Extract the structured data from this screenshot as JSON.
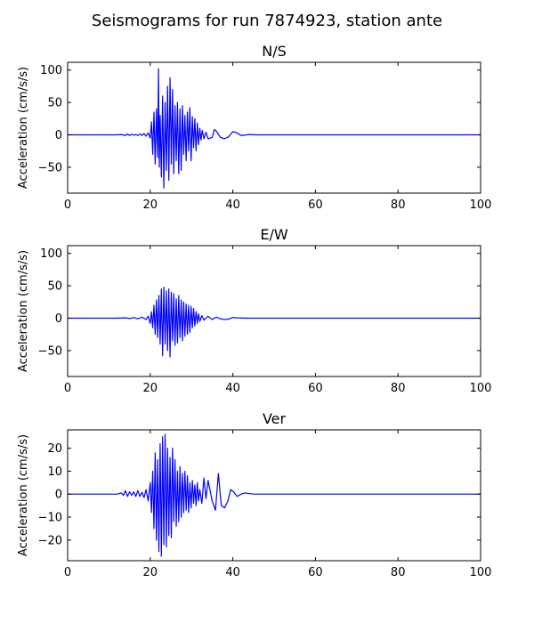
{
  "figure": {
    "suptitle": "Seismograms for run 7874923, station ante"
  },
  "chart_data": [
    {
      "type": "line",
      "title": "N/S",
      "xlabel": "",
      "ylabel": "Acceleration (cm/s/s)",
      "xlim": [
        0,
        100
      ],
      "ylim": [
        -90,
        112
      ],
      "xticks": [
        0,
        20,
        40,
        60,
        80,
        100
      ],
      "yticks": [
        -50,
        0,
        50,
        100
      ],
      "grid": false,
      "line_color": "#0000ff",
      "series": [
        {
          "x": [
            0,
            10,
            12,
            13,
            14,
            14.5,
            15,
            15.5,
            16,
            16.5,
            17,
            17.5,
            18,
            18.5,
            19,
            19.5,
            20,
            20.3,
            20.6,
            20.9,
            21.2,
            21.5,
            21.8,
            22.0,
            22.2,
            22.4,
            22.7,
            23.0,
            23.3,
            23.6,
            23.9,
            24.2,
            24.5,
            24.8,
            25.1,
            25.4,
            25.7,
            26.0,
            26.3,
            26.6,
            26.9,
            27.2,
            27.5,
            27.8,
            28.1,
            28.4,
            28.7,
            29.0,
            29.3,
            29.6,
            29.9,
            30.2,
            30.5,
            30.8,
            31.1,
            31.4,
            31.7,
            32.0,
            32.3,
            32.6,
            33.0,
            33.5,
            34.0,
            35.0,
            35.5,
            36.0,
            37.0,
            38.0,
            39.0,
            40.0,
            41.0,
            42.0,
            44.0,
            46.0,
            100
          ],
          "y": [
            0,
            0,
            0,
            0.5,
            -1,
            1.5,
            -1,
            1,
            -0.5,
            0.5,
            -1,
            1.5,
            -1,
            2,
            -2,
            3,
            -5,
            20,
            -30,
            35,
            -45,
            40,
            -35,
            102,
            -50,
            30,
            -65,
            60,
            -82,
            50,
            -55,
            75,
            -70,
            88,
            -45,
            70,
            -60,
            45,
            -40,
            50,
            -60,
            40,
            -55,
            45,
            -30,
            30,
            -40,
            35,
            -25,
            42,
            -40,
            28,
            -20,
            25,
            -25,
            18,
            -15,
            10,
            -8,
            7,
            -6,
            4,
            -6,
            -4,
            8,
            6,
            -4,
            -6,
            -3,
            5,
            3,
            -1,
            0.5,
            0,
            0
          ]
        }
      ]
    },
    {
      "type": "line",
      "title": "E/W",
      "xlabel": "",
      "ylabel": "Acceleration (cm/s/s)",
      "xlim": [
        0,
        100
      ],
      "ylim": [
        -90,
        112
      ],
      "xticks": [
        0,
        20,
        40,
        60,
        80,
        100
      ],
      "yticks": [
        -50,
        0,
        50,
        100
      ],
      "grid": false,
      "line_color": "#0000ff",
      "series": [
        {
          "x": [
            0,
            12,
            14,
            15,
            16,
            17,
            18,
            19,
            19.5,
            20,
            20.3,
            20.6,
            20.9,
            21.2,
            21.5,
            21.8,
            22.1,
            22.4,
            22.7,
            23.0,
            23.3,
            23.6,
            23.9,
            24.2,
            24.5,
            24.8,
            25.1,
            25.4,
            25.7,
            26.0,
            26.3,
            26.6,
            26.9,
            27.2,
            27.5,
            27.8,
            28.1,
            28.4,
            28.7,
            29.0,
            29.3,
            29.6,
            29.9,
            30.2,
            30.5,
            30.8,
            31.1,
            31.4,
            31.7,
            32.0,
            32.5,
            33.0,
            34.0,
            35.0,
            36.0,
            37.0,
            38.0,
            39.0,
            40.0,
            41.0,
            43.0,
            100
          ],
          "y": [
            0,
            0,
            0.5,
            -0.5,
            1,
            -1,
            1.5,
            -2,
            3,
            -8,
            10,
            -15,
            20,
            -25,
            28,
            -30,
            35,
            -40,
            45,
            -58,
            48,
            -40,
            42,
            -50,
            45,
            -60,
            40,
            -35,
            38,
            -42,
            30,
            -38,
            35,
            -30,
            28,
            -35,
            25,
            -28,
            22,
            -25,
            20,
            -22,
            18,
            -15,
            15,
            -12,
            10,
            -8,
            7,
            -5,
            4,
            -3,
            3,
            -2,
            1.5,
            -1,
            -2,
            -1.5,
            1,
            0.5,
            0,
            0
          ]
        }
      ]
    },
    {
      "type": "line",
      "title": "Ver",
      "xlabel": "",
      "ylabel": "Acceleration (cm/s/s)",
      "xlim": [
        0,
        100
      ],
      "ylim": [
        -29,
        28
      ],
      "xticks": [
        0,
        20,
        40,
        60,
        80,
        100
      ],
      "yticks": [
        -20,
        -10,
        0,
        10,
        20
      ],
      "grid": false,
      "line_color": "#0000ff",
      "series": [
        {
          "x": [
            0,
            12,
            13,
            13.5,
            14,
            14.5,
            15,
            15.5,
            16,
            16.5,
            17,
            17.5,
            18,
            18.5,
            19,
            19.5,
            20,
            20.3,
            20.6,
            20.9,
            21.2,
            21.5,
            21.8,
            22.1,
            22.4,
            22.7,
            23.0,
            23.3,
            23.6,
            23.9,
            24.2,
            24.5,
            24.8,
            25.1,
            25.4,
            25.7,
            26.0,
            26.3,
            26.6,
            26.9,
            27.2,
            27.5,
            27.8,
            28.1,
            28.4,
            28.7,
            29.0,
            29.3,
            29.6,
            29.9,
            30.2,
            30.5,
            30.8,
            31.1,
            31.4,
            31.7,
            32.0,
            32.5,
            33.0,
            33.5,
            34.0,
            35.0,
            35.8,
            36.5,
            37.2,
            38.0,
            38.8,
            39.5,
            40.2,
            41.0,
            42.0,
            43.0,
            45.0,
            100
          ],
          "y": [
            0,
            0,
            0.5,
            -0.5,
            1.5,
            -1,
            1,
            -0.5,
            1,
            -1,
            1.5,
            -1,
            0.8,
            -1.5,
            2,
            -3,
            5,
            -8,
            10,
            -15,
            18,
            -20,
            15,
            -25,
            22,
            -27,
            25,
            -22,
            26,
            -23,
            20,
            -18,
            16,
            -19,
            20,
            -12,
            15,
            -14,
            10,
            -12,
            12,
            -10,
            9,
            -8,
            10,
            -7,
            8,
            -8,
            5,
            -6,
            6,
            -4,
            4,
            -5,
            5,
            -3,
            2,
            -4,
            7,
            -2,
            6,
            -3,
            -7,
            9,
            -5,
            -6,
            -3,
            2,
            1,
            -1,
            0,
            0.5,
            0,
            0
          ]
        }
      ]
    }
  ]
}
